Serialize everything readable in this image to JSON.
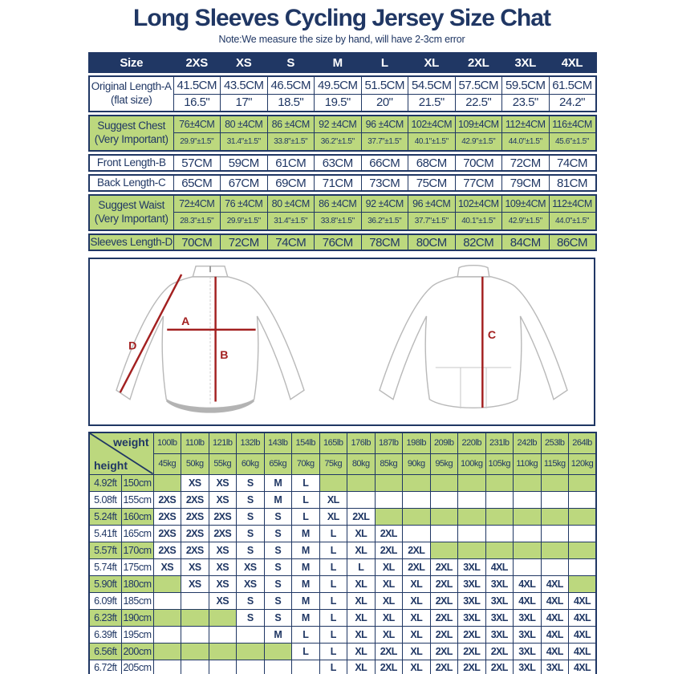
{
  "page": {
    "title": "Long Sleeves Cycling Jersey Size Chat",
    "note": "Note:We measure the size by hand, will have 2-3cm error"
  },
  "colors": {
    "navy": "#203764",
    "green": "#bcd87e",
    "red": "#a32020"
  },
  "size_table": {
    "header": [
      "Size",
      "2XS",
      "XS",
      "S",
      "M",
      "L",
      "XL",
      "2XL",
      "3XL",
      "4XL"
    ],
    "rows": [
      {
        "label_lines": [
          "Original Length-A",
          "(flat size)"
        ],
        "bg": "white",
        "sub_rows": [
          [
            "41.5CM",
            "43.5CM",
            "46.5CM",
            "49.5CM",
            "51.5CM",
            "54.5CM",
            "57.5CM",
            "59.5CM",
            "61.5CM"
          ],
          [
            "16.5\"",
            "17\"",
            "18.5\"",
            "19.5\"",
            "20\"",
            "21.5\"",
            "22.5\"",
            "23.5\"",
            "24.2\""
          ]
        ]
      },
      {
        "label_lines": [
          "Suggest Chest",
          "(Very Important)"
        ],
        "bg": "green",
        "sub_rows": [
          [
            "76±4CM",
            "80 ±4CM",
            "86 ±4CM",
            "92 ±4CM",
            "96 ±4CM",
            "102±4CM",
            "109±4CM",
            "112±4CM",
            "116±4CM"
          ],
          [
            "29.9\"±1.5\"",
            "31.4\"±1.5\"",
            "33.8\"±1.5\"",
            "36.2\"±1.5\"",
            "37.7\"±1.5\"",
            "40.1\"±1.5\"",
            "42.9\"±1.5\"",
            "44.0\"±1.5\"",
            "45.6\"±1.5\""
          ]
        ]
      },
      {
        "label_lines": [
          "Front Length-B"
        ],
        "bg": "white",
        "sub_rows": [
          [
            "57CM",
            "59CM",
            "61CM",
            "63CM",
            "66CM",
            "68CM",
            "70CM",
            "72CM",
            "74CM"
          ]
        ]
      },
      {
        "label_lines": [
          "Back Length-C"
        ],
        "bg": "white",
        "sub_rows": [
          [
            "65CM",
            "67CM",
            "69CM",
            "71CM",
            "73CM",
            "75CM",
            "77CM",
            "79CM",
            "81CM"
          ]
        ]
      },
      {
        "label_lines": [
          "Suggest Waist",
          "(Very Important)"
        ],
        "bg": "green",
        "sub_rows": [
          [
            "72±4CM",
            "76 ±4CM",
            "80 ±4CM",
            "86 ±4CM",
            "92 ±4CM",
            "96 ±4CM",
            "102±4CM",
            "109±4CM",
            "112±4CM"
          ],
          [
            "28.3\"±1.5\"",
            "29.9\"±1.5\"",
            "31.4\"±1.5\"",
            "33.8\"±1.5\"",
            "36.2\"±1.5\"",
            "37.7\"±1.5\"",
            "40.1\"±1.5\"",
            "42.9\"±1.5\"",
            "44.0\"±1.5\""
          ]
        ]
      },
      {
        "label_lines": [
          "Sleeves Length-D"
        ],
        "bg": "green",
        "sub_rows": [
          [
            "70CM",
            "72CM",
            "74CM",
            "76CM",
            "78CM",
            "80CM",
            "82CM",
            "84CM",
            "86CM"
          ]
        ]
      }
    ]
  },
  "diagram": {
    "front": {
      "sleeve_label": "D",
      "chest_label": "A",
      "front_length_label": "B"
    },
    "back": {
      "back_length_label": "C"
    }
  },
  "fit_matrix": {
    "corner": {
      "top_right": "weight",
      "bottom_left": "height"
    },
    "weights_lb": [
      "100lb",
      "110lb",
      "121lb",
      "132lb",
      "143lb",
      "154lb",
      "165lb",
      "176lb",
      "187lb",
      "198lb",
      "209lb",
      "220lb",
      "231lb",
      "242lb",
      "253lb",
      "264lb"
    ],
    "weights_kg": [
      "45kg",
      "50kg",
      "55kg",
      "60kg",
      "65kg",
      "70kg",
      "75kg",
      "80kg",
      "85kg",
      "90kg",
      "95kg",
      "100kg",
      "105kg",
      "110kg",
      "115kg",
      "120kg"
    ],
    "rows": [
      {
        "ft": "4.92ft",
        "cm": "150cm",
        "sizes": [
          "",
          "XS",
          "XS",
          "S",
          "M",
          "L",
          "",
          "",
          "",
          "",
          "",
          "",
          "",
          "",
          "",
          ""
        ]
      },
      {
        "ft": "5.08ft",
        "cm": "155cm",
        "sizes": [
          "2XS",
          "2XS",
          "XS",
          "S",
          "M",
          "L",
          "XL",
          "",
          "",
          "",
          "",
          "",
          "",
          "",
          "",
          ""
        ]
      },
      {
        "ft": "5.24ft",
        "cm": "160cm",
        "sizes": [
          "2XS",
          "2XS",
          "2XS",
          "S",
          "S",
          "L",
          "XL",
          "2XL",
          "",
          "",
          "",
          "",
          "",
          "",
          "",
          ""
        ]
      },
      {
        "ft": "5.41ft",
        "cm": "165cm",
        "sizes": [
          "2XS",
          "2XS",
          "2XS",
          "S",
          "S",
          "M",
          "L",
          "XL",
          "2XL",
          "",
          "",
          "",
          "",
          "",
          "",
          ""
        ]
      },
      {
        "ft": "5.57ft",
        "cm": "170cm",
        "sizes": [
          "2XS",
          "2XS",
          "XS",
          "S",
          "S",
          "M",
          "L",
          "XL",
          "2XL",
          "2XL",
          "",
          "",
          "",
          "",
          "",
          ""
        ]
      },
      {
        "ft": "5.74ft",
        "cm": "175cm",
        "sizes": [
          "XS",
          "XS",
          "XS",
          "XS",
          "S",
          "M",
          "L",
          "L",
          "XL",
          "2XL",
          "2XL",
          "3XL",
          "4XL",
          "",
          "",
          ""
        ]
      },
      {
        "ft": "5.90ft",
        "cm": "180cm",
        "sizes": [
          "",
          "XS",
          "XS",
          "XS",
          "S",
          "M",
          "L",
          "XL",
          "XL",
          "XL",
          "2XL",
          "3XL",
          "3XL",
          "4XL",
          "4XL",
          ""
        ]
      },
      {
        "ft": "6.09ft",
        "cm": "185cm",
        "sizes": [
          "",
          "",
          "XS",
          "S",
          "S",
          "M",
          "L",
          "XL",
          "XL",
          "XL",
          "2XL",
          "3XL",
          "3XL",
          "4XL",
          "4XL",
          "4XL"
        ]
      },
      {
        "ft": "6.23ft",
        "cm": "190cm",
        "sizes": [
          "",
          "",
          "",
          "S",
          "S",
          "M",
          "L",
          "XL",
          "XL",
          "XL",
          "2XL",
          "3XL",
          "3XL",
          "3XL",
          "4XL",
          "4XL"
        ]
      },
      {
        "ft": "6.39ft",
        "cm": "195cm",
        "sizes": [
          "",
          "",
          "",
          "",
          "M",
          "L",
          "L",
          "XL",
          "XL",
          "XL",
          "2XL",
          "2XL",
          "3XL",
          "3XL",
          "4XL",
          "4XL"
        ]
      },
      {
        "ft": "6.56ft",
        "cm": "200cm",
        "sizes": [
          "",
          "",
          "",
          "",
          "",
          "L",
          "L",
          "XL",
          "2XL",
          "XL",
          "2XL",
          "2XL",
          "2XL",
          "3XL",
          "4XL",
          "4XL"
        ]
      },
      {
        "ft": "6.72ft",
        "cm": "205cm",
        "sizes": [
          "",
          "",
          "",
          "",
          "",
          "",
          "L",
          "XL",
          "2XL",
          "XL",
          "2XL",
          "2XL",
          "2XL",
          "3XL",
          "3XL",
          "4XL"
        ]
      }
    ]
  }
}
